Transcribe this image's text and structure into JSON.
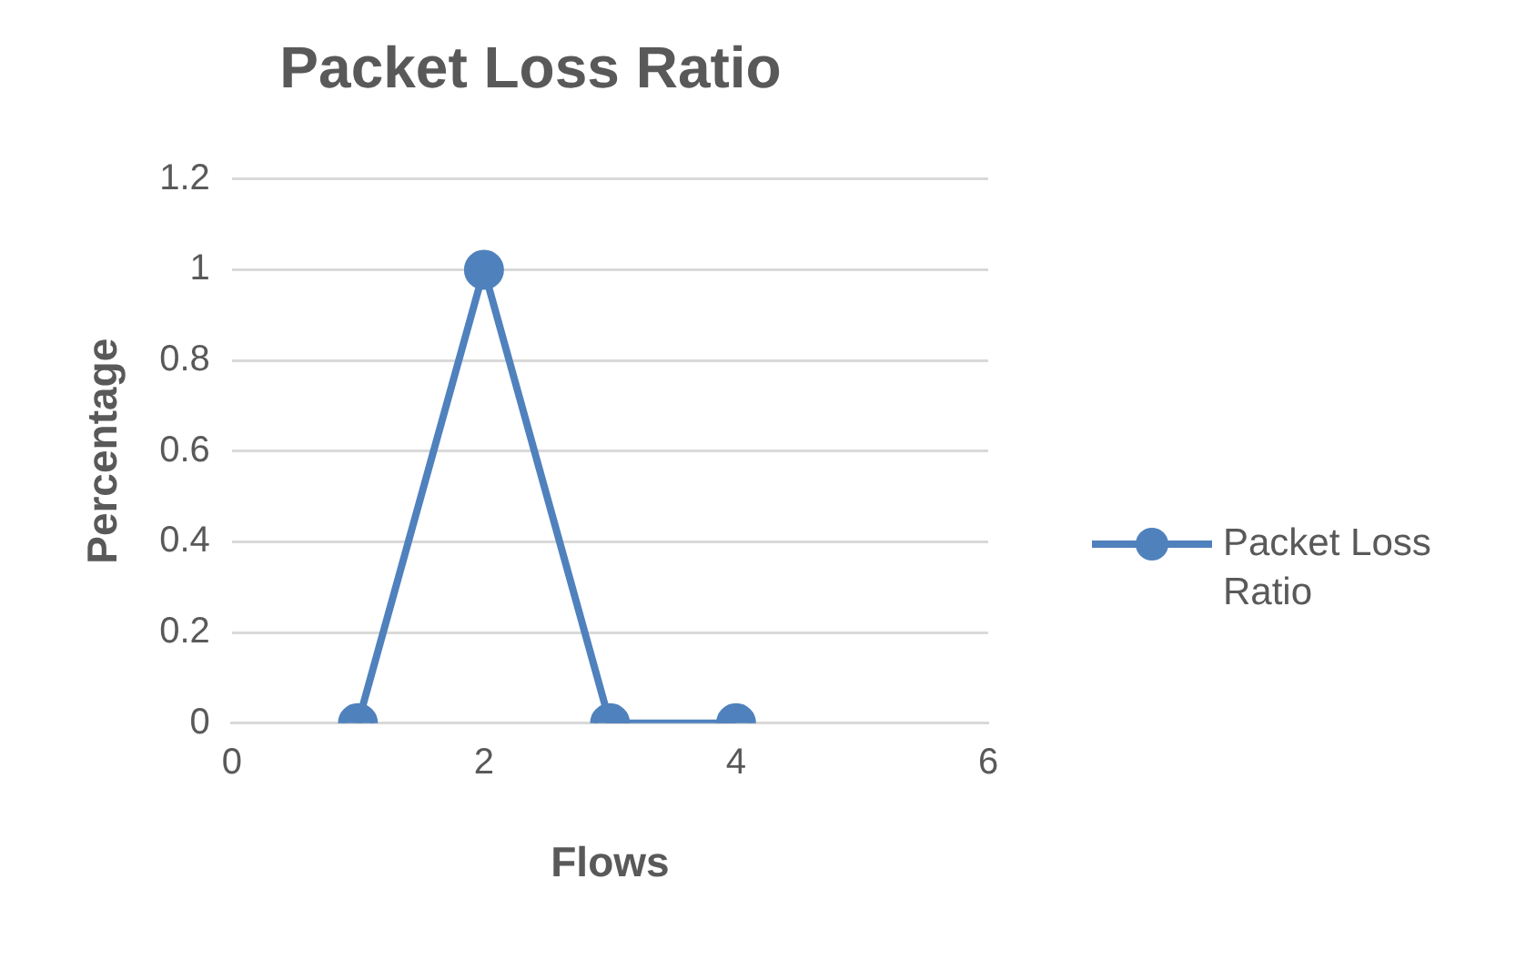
{
  "chart_data": {
    "type": "line",
    "title": "Packet Loss Ratio",
    "xlabel": "Flows",
    "ylabel": "Percentage",
    "x": [
      1,
      2,
      3,
      4
    ],
    "series": [
      {
        "name": "Packet Loss Ratio",
        "color": "#4f81bd",
        "values": [
          0,
          1,
          0,
          0
        ]
      }
    ],
    "xlim": [
      0,
      6
    ],
    "xticks": [
      0,
      2,
      4,
      6
    ],
    "ylim": [
      0,
      1.2
    ],
    "yticks": [
      0,
      0.2,
      0.4,
      0.6,
      0.8,
      1,
      1.2
    ],
    "grid": "y",
    "legend": "right",
    "marker": "circle",
    "line_style": "solid"
  }
}
